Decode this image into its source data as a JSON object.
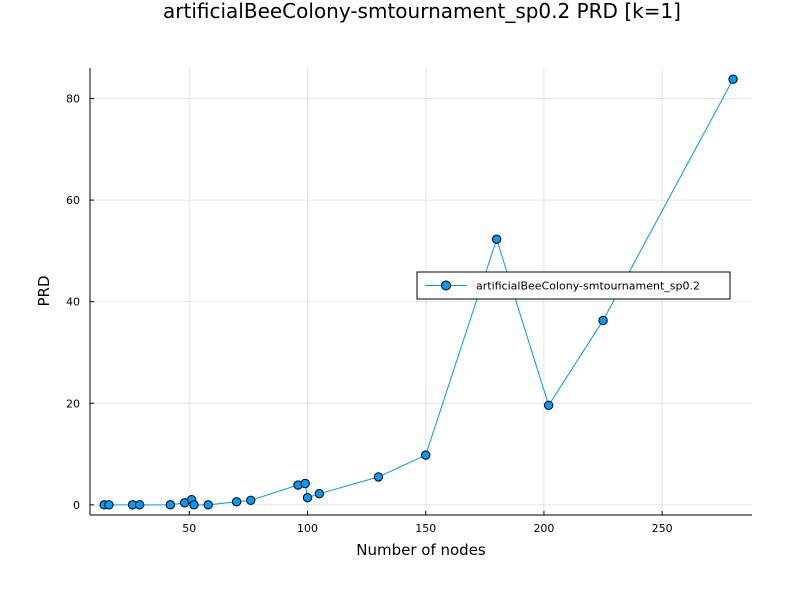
{
  "chart_data": {
    "type": "line",
    "title": "artificialBeeColony-smtournament_sp0.2 PRD [k=1]",
    "xlabel": "Number of nodes",
    "ylabel": "PRD",
    "xlim": [
      8,
      288
    ],
    "ylim": [
      -2,
      86
    ],
    "x_ticks": [
      50,
      100,
      150,
      200,
      250
    ],
    "y_ticks": [
      0,
      20,
      40,
      60,
      80
    ],
    "grid": true,
    "legend_position": "right",
    "series": [
      {
        "name": "artificialBeeColony-smtournament_sp0.2",
        "color": "#009af9",
        "marker": "circle",
        "x": [
          14,
          16,
          26,
          29,
          42,
          48,
          51,
          52,
          58,
          70,
          76,
          96,
          99,
          100,
          105,
          130,
          150,
          180,
          202,
          225,
          280
        ],
        "y": [
          0.0,
          0.0,
          0.0,
          0.0,
          0.0,
          0.4,
          1.0,
          0.0,
          0.0,
          0.6,
          0.9,
          3.9,
          4.2,
          1.4,
          2.2,
          5.5,
          9.8,
          52.3,
          19.6,
          36.3,
          83.8
        ]
      }
    ]
  }
}
